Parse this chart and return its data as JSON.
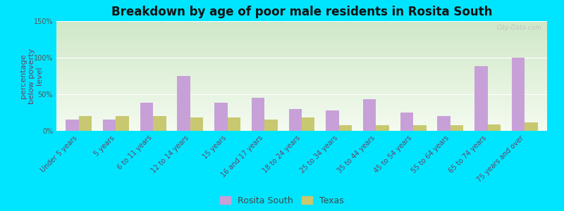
{
  "title": "Breakdown by age of poor male residents in Rosita South",
  "ylabel": "percentage\nbelow poverty\nlevel",
  "categories": [
    "Under 5 years",
    "5 years",
    "6 to 11 years",
    "12 to 14 years",
    "15 years",
    "16 and 17 years",
    "18 to 24 years",
    "25 to 34 years",
    "35 to 44 years",
    "45 to 54 years",
    "55 to 64 years",
    "65 to 74 years",
    "75 years and over"
  ],
  "rosita_south": [
    15,
    15,
    38,
    75,
    38,
    45,
    30,
    28,
    43,
    25,
    20,
    88,
    100
  ],
  "texas": [
    20,
    20,
    20,
    18,
    18,
    15,
    18,
    8,
    8,
    8,
    8,
    9,
    12
  ],
  "rosita_color": "#c8a0d8",
  "texas_color": "#c8c870",
  "ylim": [
    0,
    150
  ],
  "yticks": [
    0,
    50,
    100,
    150
  ],
  "ytick_labels": [
    "0%",
    "50%",
    "100%",
    "150%"
  ],
  "bar_width": 0.35,
  "title_fontsize": 12,
  "axis_fontsize": 8,
  "tick_fontsize": 7,
  "legend_fontsize": 9,
  "background_color": "#00e5ff",
  "plot_area_color_top": "#d0e8c8",
  "plot_area_color_bottom": "#f4fbf0",
  "watermark": "City-Data.com"
}
